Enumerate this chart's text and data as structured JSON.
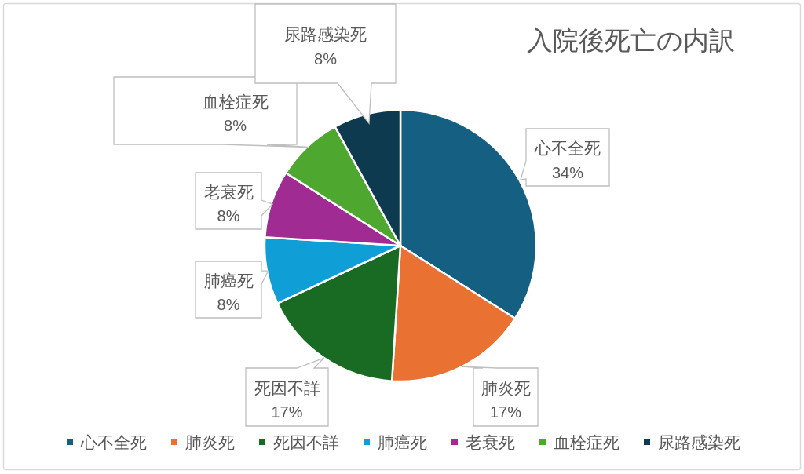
{
  "chart_data": {
    "type": "pie",
    "title": "入院後死亡の内訳",
    "categories": [
      "心不全死",
      "肺炎死",
      "死因不詳",
      "肺癌死",
      "老衰死",
      "血栓症死",
      "尿路感染死"
    ],
    "values": [
      34,
      17,
      17,
      8,
      8,
      8,
      8
    ],
    "colors": [
      "#156082",
      "#e97132",
      "#196b24",
      "#0f9ed5",
      "#a02b93",
      "#4ea72e",
      "#0d3a4f"
    ],
    "value_labels": [
      "34%",
      "17%",
      "17%",
      "8%",
      "8%",
      "8%",
      "8%"
    ],
    "legend": "bottom"
  }
}
